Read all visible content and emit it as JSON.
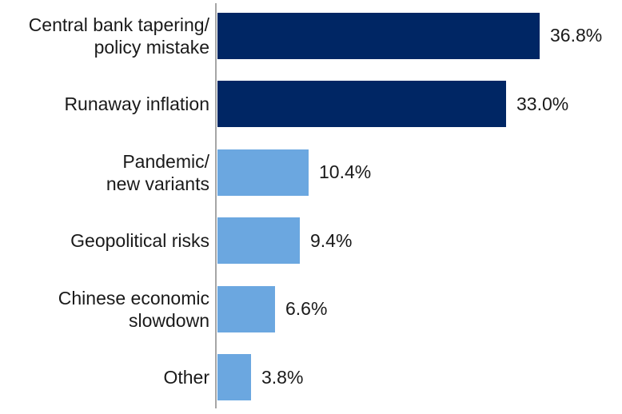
{
  "chart_data": {
    "type": "bar",
    "orientation": "horizontal",
    "title": "",
    "xlabel": "",
    "ylabel": "",
    "categories": [
      "Central bank tapering/ policy mistake",
      "Runaway inflation",
      "Pandemic/ new variants",
      "Geopolitical risks",
      "Chinese economic slowdown",
      "Other"
    ],
    "values": [
      36.8,
      33.0,
      10.4,
      9.4,
      6.6,
      3.8
    ],
    "bars": [
      {
        "label_lines": [
          "Central bank tapering/",
          "policy mistake"
        ],
        "value": 36.8,
        "value_label": "36.8%",
        "color": "#002664"
      },
      {
        "label_lines": [
          "Runaway inflation"
        ],
        "value": 33.0,
        "value_label": "33.0%",
        "color": "#002664"
      },
      {
        "label_lines": [
          "Pandemic/",
          "new variants"
        ],
        "value": 10.4,
        "value_label": "10.4%",
        "color": "#6BA7E0"
      },
      {
        "label_lines": [
          "Geopolitical risks"
        ],
        "value": 9.4,
        "value_label": "9.4%",
        "color": "#6BA7E0"
      },
      {
        "label_lines": [
          "Chinese economic",
          "slowdown"
        ],
        "value": 6.6,
        "value_label": "6.6%",
        "color": "#6BA7E0"
      },
      {
        "label_lines": [
          "Other"
        ],
        "value": 3.8,
        "value_label": "3.8%",
        "color": "#6BA7E0"
      }
    ],
    "xlim": [
      0,
      36.8
    ],
    "grid": false,
    "legend": false,
    "axis_color": "#A6A6A6",
    "text_color": "#1A1A1A",
    "background": "#FFFFFF",
    "palette": {
      "dark_navy": "#002664",
      "light_blue": "#6BA7E0"
    }
  }
}
